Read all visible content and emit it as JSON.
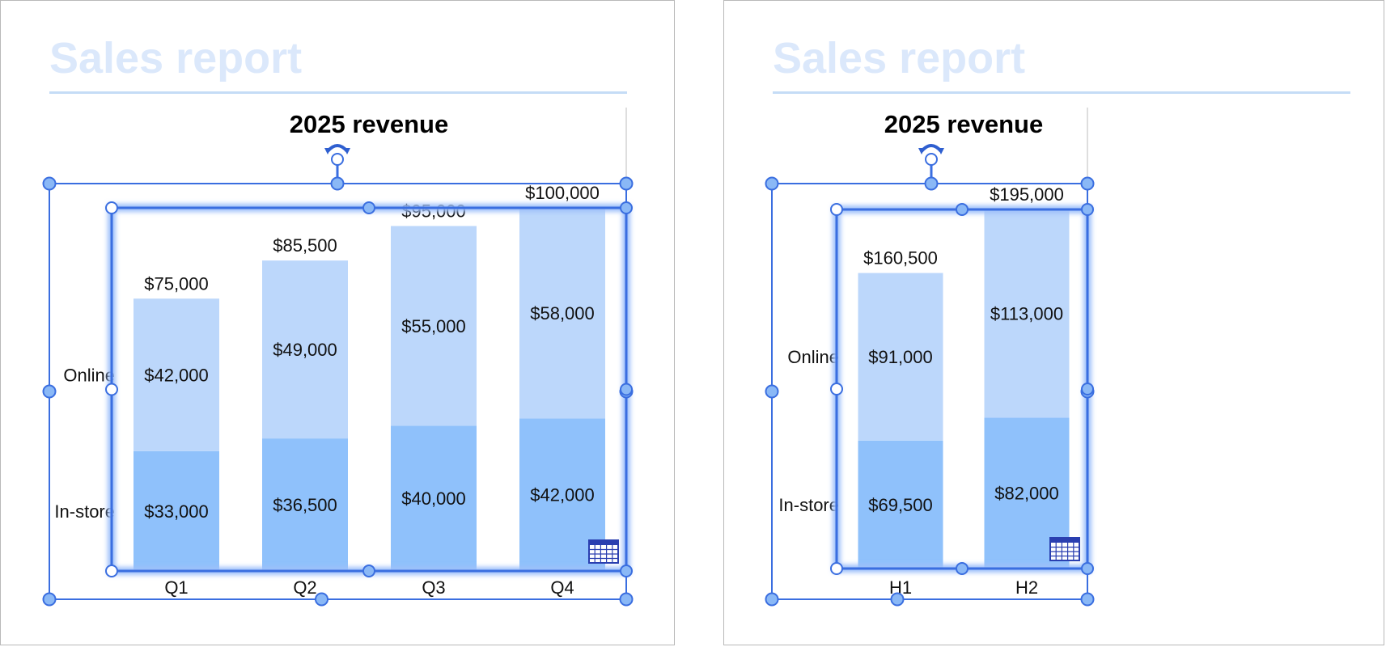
{
  "slides": [
    {
      "title": "Sales report"
    },
    {
      "title": "Sales report"
    }
  ],
  "colors": {
    "online": "#bcd7fb",
    "instore": "#8fc1fb",
    "selection": "#3a6ee0",
    "handle_fill": "#8ab8f6",
    "title_faded": "#dbe8fb",
    "rule": "#c5dcf6"
  },
  "chart_data": [
    {
      "type": "bar",
      "stacked": true,
      "title": "2025 revenue",
      "categories": [
        "Q1",
        "Q2",
        "Q3",
        "Q4"
      ],
      "series": [
        {
          "name": "In-store",
          "values": [
            33000,
            36500,
            40000,
            42000
          ],
          "labels": [
            "$33,000",
            "$36,500",
            "$40,000",
            "$42,000"
          ]
        },
        {
          "name": "Online",
          "values": [
            42000,
            49000,
            55000,
            58000
          ],
          "labels": [
            "$42,000",
            "$49,000",
            "$55,000",
            "$58,000"
          ]
        }
      ],
      "totals": [
        75000,
        85500,
        95000,
        100000
      ],
      "total_labels": [
        "$75,000",
        "$85,500",
        "$95,000",
        "$100,000"
      ],
      "ylim": [
        0,
        100000
      ],
      "xlabel": "",
      "ylabel": "",
      "grid": false,
      "legend": "left-inline"
    },
    {
      "type": "bar",
      "stacked": true,
      "title": "2025 revenue",
      "categories": [
        "H1",
        "H2"
      ],
      "series": [
        {
          "name": "In-store",
          "values": [
            69500,
            82000
          ],
          "labels": [
            "$69,500",
            "$82,000"
          ]
        },
        {
          "name": "Online",
          "values": [
            91000,
            113000
          ],
          "labels": [
            "$91,000",
            "$113,000"
          ]
        }
      ],
      "totals": [
        160500,
        195000
      ],
      "total_labels": [
        "$160,500",
        "$195,000"
      ],
      "ylim": [
        0,
        195000
      ],
      "xlabel": "",
      "ylabel": "",
      "grid": false,
      "legend": "left-inline"
    }
  ]
}
